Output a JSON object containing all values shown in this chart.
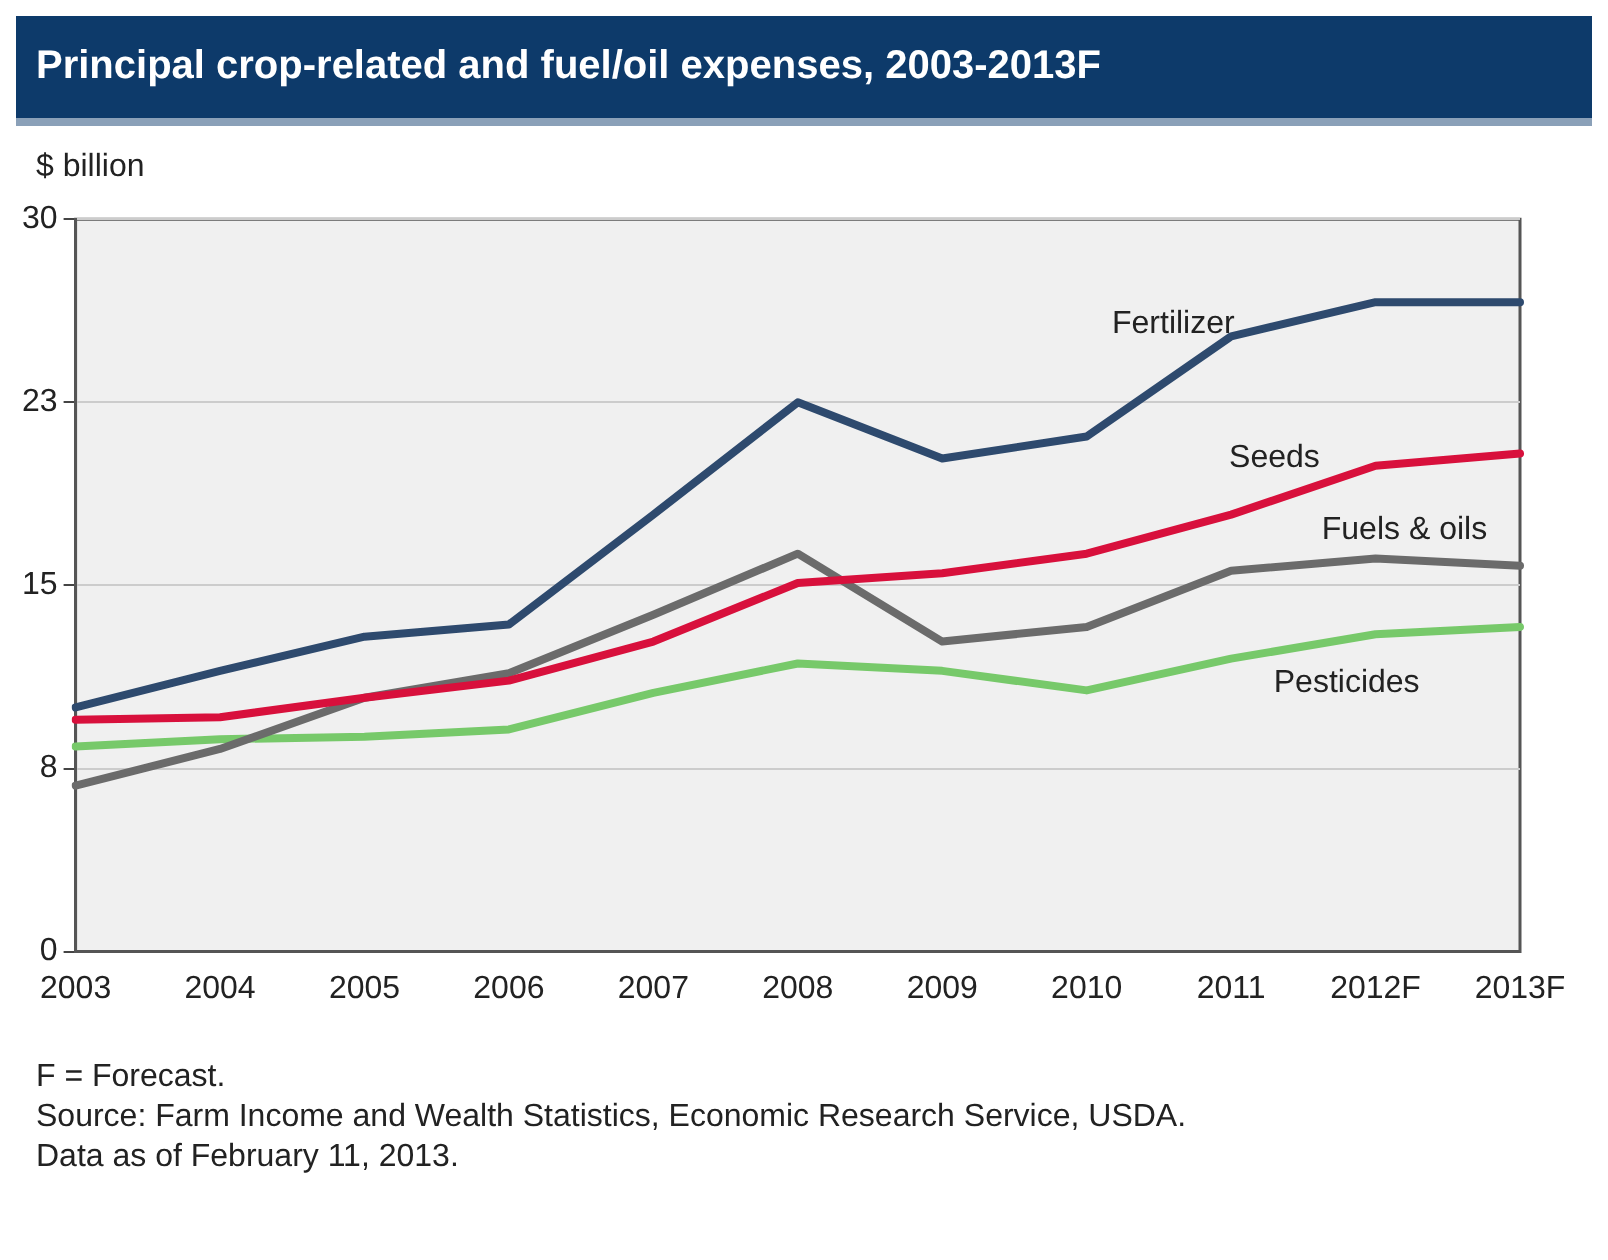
{
  "chart_data": {
    "type": "line",
    "title": "Principal crop-related and fuel/oil expenses, 2003-2013F",
    "ylabel": "$ billion",
    "categories": [
      "2003",
      "2004",
      "2005",
      "2006",
      "2007",
      "2008",
      "2009",
      "2010",
      "2011",
      "2012F",
      "2013F"
    ],
    "series": [
      {
        "name": "Fertilizer",
        "color": "#2e4a6e",
        "values": [
          10.0,
          11.5,
          12.9,
          13.4,
          17.9,
          22.5,
          20.2,
          21.1,
          25.2,
          26.6,
          26.6
        ]
      },
      {
        "name": "Seeds",
        "color": "#d8103c",
        "values": [
          9.5,
          9.6,
          10.4,
          11.1,
          12.7,
          15.1,
          15.5,
          16.3,
          17.9,
          19.9,
          20.4
        ]
      },
      {
        "name": "Fuels & oils",
        "color": "#6b6b6b",
        "values": [
          6.8,
          8.3,
          10.4,
          11.4,
          13.8,
          16.3,
          12.7,
          13.3,
          15.6,
          16.1,
          15.8
        ]
      },
      {
        "name": "Pesticides",
        "color": "#77c96a",
        "values": [
          8.4,
          8.7,
          8.8,
          9.1,
          10.6,
          11.8,
          11.5,
          10.7,
          12.0,
          13.0,
          13.3
        ]
      }
    ],
    "ylim": [
      0,
      30
    ],
    "yticks": [
      0,
      {
        "value": 7.5,
        "label": "8"
      },
      15,
      {
        "value": 22.5,
        "label": "23"
      },
      30
    ],
    "grid": "y",
    "legend": false,
    "marker": "none",
    "line_style": "solid",
    "annotations": [
      "F = Forecast.",
      "Source: Farm Income and Wealth Statistics, Economic Research Service, USDA.",
      "Data as of February 11, 2013."
    ]
  }
}
